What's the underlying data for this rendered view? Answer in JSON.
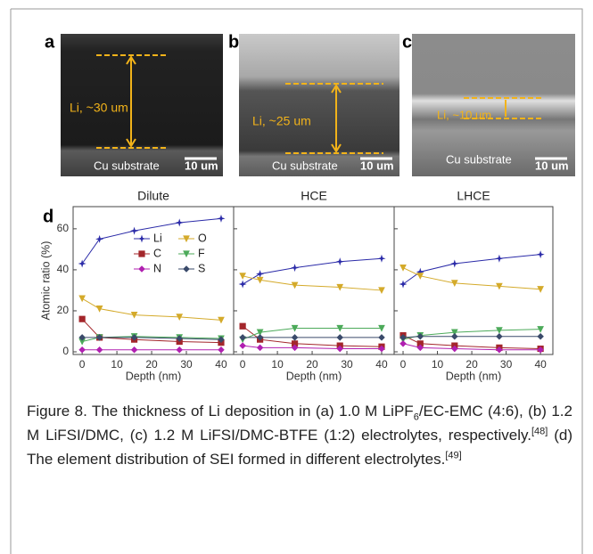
{
  "figure": {
    "panels": [
      {
        "letter": "a",
        "layer_label": "Li, ~30 um",
        "substrate": "Cu substrate",
        "scale": "10 um"
      },
      {
        "letter": "b",
        "layer_label": "Li, ~25 um",
        "substrate": "Cu substrate",
        "scale": "10 um"
      },
      {
        "letter": "c",
        "layer_label": "Li, ~10 um",
        "substrate": "Cu substrate",
        "scale": "10 um"
      }
    ],
    "chart_letter": "d"
  },
  "chart_data": [
    {
      "type": "line",
      "title": "Dilute",
      "xlabel": "Depth (nm)",
      "ylabel": "Atomic ratio (%)",
      "legend": "upper right",
      "x": [
        0,
        5,
        15,
        28,
        40
      ],
      "xlim": [
        -2.6,
        43.6
      ],
      "ylim": [
        -1.3,
        70.8
      ],
      "xticks": [
        0,
        10,
        20,
        30,
        40
      ],
      "yticks": [
        0,
        20,
        40,
        60
      ],
      "series": [
        {
          "name": "Li",
          "color": "#2b2ba8",
          "marker": "star",
          "values": [
            43,
            55,
            59,
            63,
            65
          ]
        },
        {
          "name": "O",
          "color": "#d4aa2a",
          "marker": "triangle",
          "values": [
            26,
            21,
            18,
            17,
            15.5
          ]
        },
        {
          "name": "C",
          "color": "#a3262b",
          "marker": "square",
          "values": [
            16,
            7,
            6,
            5,
            4.5
          ]
        },
        {
          "name": "F",
          "color": "#4caa5a",
          "marker": "triangle",
          "values": [
            5,
            7,
            7.5,
            7,
            6.5
          ]
        },
        {
          "name": "N",
          "color": "#b020b0",
          "marker": "diamond",
          "values": [
            1,
            1,
            1,
            1,
            1
          ]
        },
        {
          "name": "S",
          "color": "#3a4a6a",
          "marker": "diamond",
          "values": [
            7,
            7,
            7,
            6.5,
            6
          ]
        }
      ]
    },
    {
      "type": "line",
      "title": "HCE",
      "xlabel": "Depth (nm)",
      "x": [
        0,
        5,
        15,
        28,
        40
      ],
      "xlim": [
        -2.6,
        43.6
      ],
      "ylim": [
        -1.3,
        70.8
      ],
      "xticks": [
        0,
        10,
        20,
        30,
        40
      ],
      "yticks": [
        0,
        20,
        40,
        60
      ],
      "series": [
        {
          "name": "Li",
          "color": "#2b2ba8",
          "marker": "star",
          "values": [
            33,
            38,
            41,
            44,
            45.5
          ]
        },
        {
          "name": "O",
          "color": "#d4aa2a",
          "marker": "triangle",
          "values": [
            37,
            35,
            32.5,
            31.5,
            30
          ]
        },
        {
          "name": "C",
          "color": "#a3262b",
          "marker": "square",
          "values": [
            12.5,
            6,
            4,
            3,
            2.5
          ]
        },
        {
          "name": "F",
          "color": "#4caa5a",
          "marker": "triangle",
          "values": [
            6,
            9.5,
            11.5,
            11.5,
            11.5
          ]
        },
        {
          "name": "N",
          "color": "#b020b0",
          "marker": "diamond",
          "values": [
            3,
            2,
            2,
            1.5,
            1.5
          ]
        },
        {
          "name": "S",
          "color": "#3a4a6a",
          "marker": "diamond",
          "values": [
            7,
            7,
            7,
            7,
            7
          ]
        }
      ]
    },
    {
      "type": "line",
      "title": "LHCE",
      "xlabel": "Depth (nm)",
      "x": [
        0,
        5,
        15,
        28,
        40
      ],
      "xlim": [
        -2.6,
        43.6
      ],
      "ylim": [
        -1.3,
        70.8
      ],
      "xticks": [
        0,
        10,
        20,
        30,
        40
      ],
      "yticks": [
        0,
        20,
        40,
        60
      ],
      "series": [
        {
          "name": "Li",
          "color": "#2b2ba8",
          "marker": "star",
          "values": [
            33,
            39,
            43,
            45.5,
            47.5
          ]
        },
        {
          "name": "O",
          "color": "#d4aa2a",
          "marker": "triangle",
          "values": [
            41,
            37,
            33.5,
            32,
            30.5
          ]
        },
        {
          "name": "C",
          "color": "#a3262b",
          "marker": "square",
          "values": [
            8,
            4,
            3,
            2,
            1.5
          ]
        },
        {
          "name": "F",
          "color": "#4caa5a",
          "marker": "triangle",
          "values": [
            6,
            8,
            9.5,
            10.5,
            11
          ]
        },
        {
          "name": "N",
          "color": "#b020b0",
          "marker": "diamond",
          "values": [
            4,
            2,
            1.5,
            1,
            1
          ]
        },
        {
          "name": "S",
          "color": "#3a4a6a",
          "marker": "diamond",
          "values": [
            7,
            7.5,
            7.5,
            7.5,
            7.5
          ]
        }
      ]
    }
  ],
  "caption": [
    "Figure 8. The thickness of Li deposition in (a) 1.0 M LiPF",
    "6",
    "/EC-EMC (4:6), (b) 1.2 M LiFSI/DMC, (c) 1.2 M LiFSI/DMC-BTFE (1:2) electrolytes, respectively.",
    "[48]",
    " (d) The element distribution of SEI formed in different electrolytes.",
    "[49]"
  ]
}
